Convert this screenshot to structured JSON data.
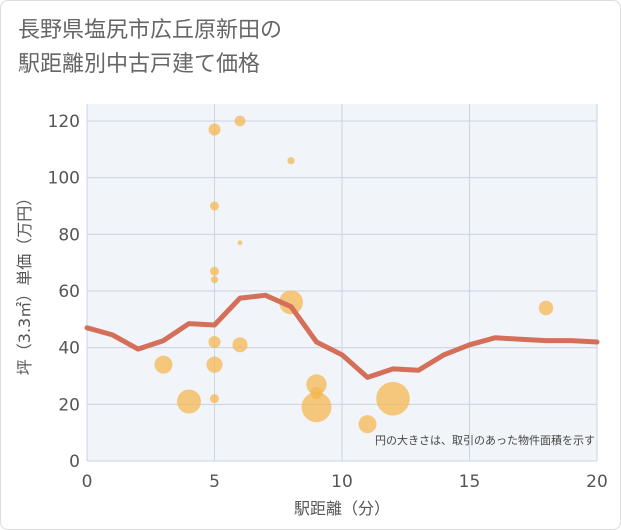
{
  "title_lines": [
    "長野県塩尻市広丘原新田の",
    "駅距離別中古戸建て価格"
  ],
  "chart_data": {
    "type": "scatter",
    "title": "長野県塩尻市広丘原新田の駅距離別中古戸建て価格",
    "xlabel": "駅距離（分）",
    "ylabel": "坪（3.3㎡）単価（万円）",
    "xlim": [
      0,
      20
    ],
    "ylim": [
      0,
      126
    ],
    "xticks": [
      0,
      5,
      10,
      15,
      20
    ],
    "yticks": [
      0,
      20,
      40,
      60,
      80,
      100,
      120
    ],
    "grid": true,
    "note": "円の大きさは、取引のあった物件面積を示す",
    "colors": {
      "point": "#f5b64d",
      "line": "#d4705a",
      "grid": "#c9d5e2",
      "plot_bg": "#f1f4f8"
    },
    "points": [
      {
        "x": 3,
        "y": 34,
        "size": 3
      },
      {
        "x": 4,
        "y": 21,
        "size": 4
      },
      {
        "x": 5,
        "y": 117,
        "size": 2
      },
      {
        "x": 5,
        "y": 90,
        "size": 1.5
      },
      {
        "x": 5,
        "y": 67,
        "size": 1.5
      },
      {
        "x": 5,
        "y": 64,
        "size": 1.2
      },
      {
        "x": 5,
        "y": 42,
        "size": 2
      },
      {
        "x": 5,
        "y": 34,
        "size": 2.7
      },
      {
        "x": 5,
        "y": 22,
        "size": 1.5
      },
      {
        "x": 6,
        "y": 120,
        "size": 1.8
      },
      {
        "x": 6,
        "y": 77,
        "size": 0.8
      },
      {
        "x": 6,
        "y": 41,
        "size": 2.5
      },
      {
        "x": 8,
        "y": 106,
        "size": 1.2
      },
      {
        "x": 8,
        "y": 56,
        "size": 4
      },
      {
        "x": 9,
        "y": 27,
        "size": 3.4
      },
      {
        "x": 9,
        "y": 24,
        "size": 2
      },
      {
        "x": 9,
        "y": 19,
        "size": 5
      },
      {
        "x": 11,
        "y": 13,
        "size": 3
      },
      {
        "x": 12,
        "y": 22,
        "size": 5.6
      },
      {
        "x": 18,
        "y": 54,
        "size": 2.4
      }
    ],
    "line": {
      "x": [
        0,
        1,
        2,
        3,
        4,
        5,
        6,
        7,
        8,
        9,
        10,
        11,
        12,
        13,
        14,
        15,
        16,
        17,
        18,
        19,
        20
      ],
      "y": [
        47,
        44.5,
        39.5,
        42.5,
        48.5,
        48,
        57.5,
        58.5,
        54.5,
        42,
        37.5,
        29.5,
        32.5,
        32,
        37.5,
        41,
        43.5,
        43,
        42.5,
        42.5,
        42
      ]
    }
  }
}
